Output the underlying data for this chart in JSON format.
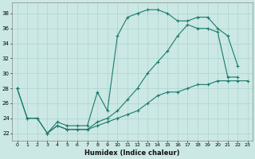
{
  "title": "",
  "xlabel": "Humidex (Indice chaleur)",
  "bg_color": "#cce8e4",
  "grid_color": "#aad4d0",
  "line_color": "#1a7a6e",
  "xlim": [
    -0.5,
    23.5
  ],
  "ylim": [
    21.0,
    39.5
  ],
  "xticks": [
    0,
    1,
    2,
    3,
    4,
    5,
    6,
    7,
    8,
    9,
    10,
    11,
    12,
    13,
    14,
    15,
    16,
    17,
    18,
    19,
    20,
    21,
    22,
    23
  ],
  "yticks": [
    22,
    24,
    26,
    28,
    30,
    32,
    34,
    36,
    38
  ],
  "line1_x": [
    0,
    1,
    2,
    3,
    4,
    5,
    6,
    7,
    8,
    9,
    10,
    11,
    12,
    13,
    14,
    15,
    16,
    17,
    18,
    19,
    20,
    21,
    22
  ],
  "line1_y": [
    28,
    24,
    24,
    22,
    23.5,
    23,
    23,
    23,
    27.5,
    25,
    35,
    37.5,
    38,
    38.5,
    38.5,
    38,
    37,
    37,
    37.5,
    37.5,
    36,
    35,
    31
  ],
  "line2_x": [
    3,
    4,
    5,
    6,
    7,
    8,
    9,
    10,
    11,
    12,
    13,
    14,
    15,
    16,
    17,
    18,
    19,
    20,
    21,
    22
  ],
  "line2_y": [
    22,
    23,
    22.5,
    22.5,
    22.5,
    23.5,
    24,
    25,
    26.5,
    28,
    30,
    31.5,
    33,
    35,
    36.5,
    36,
    36,
    35.5,
    29.5,
    29.5
  ],
  "line3_x": [
    0,
    1,
    2,
    3,
    4,
    5,
    6,
    7,
    8,
    9,
    10,
    11,
    12,
    13,
    14,
    15,
    16,
    17,
    18,
    19,
    20,
    21,
    22,
    23
  ],
  "line3_y": [
    28,
    24,
    24,
    22,
    23,
    22.5,
    22.5,
    22.5,
    23,
    23.5,
    24,
    24.5,
    25,
    26,
    27,
    27.5,
    27.5,
    28,
    28.5,
    28.5,
    29,
    29,
    29,
    29
  ],
  "figsize": [
    3.2,
    2.0
  ],
  "dpi": 100
}
